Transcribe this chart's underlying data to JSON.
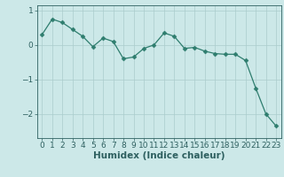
{
  "x": [
    0,
    1,
    2,
    3,
    4,
    5,
    6,
    7,
    8,
    9,
    10,
    11,
    12,
    13,
    14,
    15,
    16,
    17,
    18,
    19,
    20,
    21,
    22,
    23
  ],
  "y": [
    0.3,
    0.75,
    0.65,
    0.45,
    0.25,
    -0.05,
    0.2,
    0.1,
    -0.4,
    -0.35,
    -0.1,
    0.0,
    0.35,
    0.25,
    -0.1,
    -0.07,
    -0.18,
    -0.25,
    -0.27,
    -0.27,
    -0.45,
    -1.25,
    -2.0,
    -2.35
  ],
  "line_color": "#2e7d6e",
  "marker": "D",
  "marker_size": 2.5,
  "bg_color": "#cce8e8",
  "grid_color": "#aacccc",
  "axis_color": "#2e6060",
  "xlabel": "Humidex (Indice chaleur)",
  "ylim": [
    -2.7,
    1.15
  ],
  "yticks": [
    1,
    0,
    -1,
    -2
  ],
  "xticks": [
    0,
    1,
    2,
    3,
    4,
    5,
    6,
    7,
    8,
    9,
    10,
    11,
    12,
    13,
    14,
    15,
    16,
    17,
    18,
    19,
    20,
    21,
    22,
    23
  ],
  "font_size": 6.5,
  "xlabel_size": 7.5,
  "linewidth": 0.9
}
